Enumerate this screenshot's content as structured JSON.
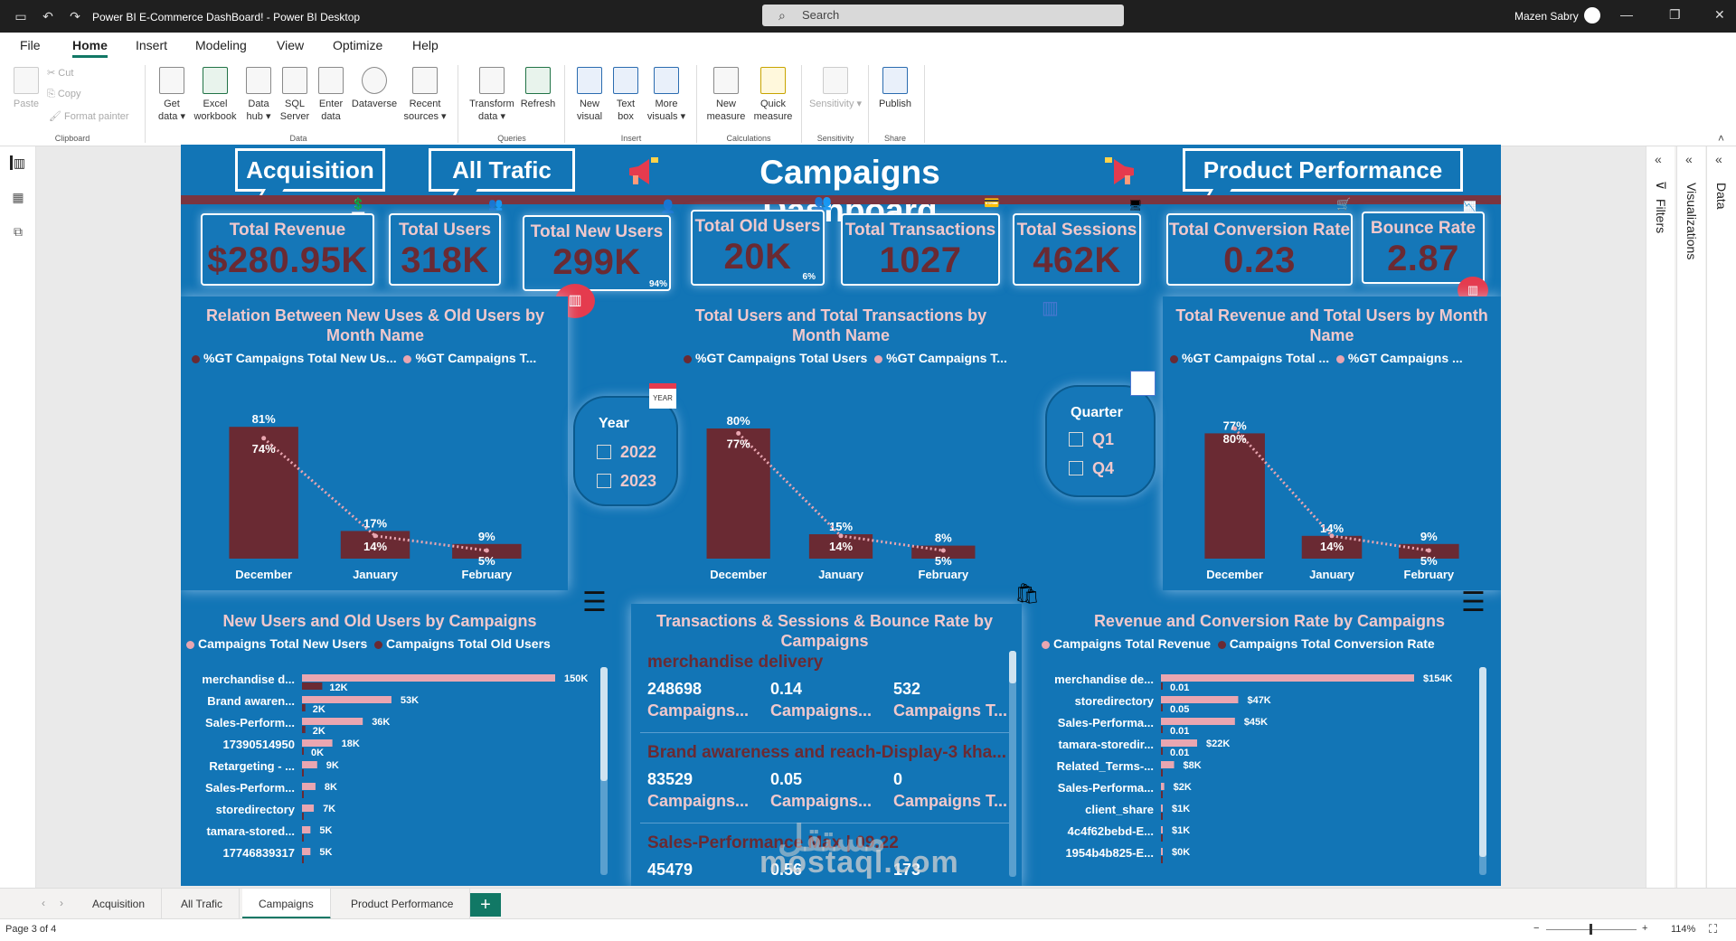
{
  "window": {
    "title": "Power BI E-Commerce DashBoard! - Power BI Desktop",
    "search_placeholder": "Search",
    "user": "Mazen Sabry"
  },
  "menu": [
    "File",
    "Home",
    "Insert",
    "Modeling",
    "View",
    "Optimize",
    "Help"
  ],
  "ribbon": {
    "clipboard": {
      "paste": "Paste",
      "cut": "Cut",
      "copy": "Copy",
      "format_painter": "Format painter",
      "group": "Clipboard"
    },
    "data": {
      "get_data": "Get data ▾",
      "excel": "Excel workbook",
      "hub": "Data hub ▾",
      "sql": "SQL Server",
      "enter": "Enter data",
      "dataverse": "Dataverse",
      "recent": "Recent sources ▾",
      "group": "Data"
    },
    "queries": {
      "transform": "Transform data ▾",
      "refresh": "Refresh",
      "group": "Queries"
    },
    "insert": {
      "new_visual": "New visual",
      "text_box": "Text box",
      "more_visuals": "More visuals ▾",
      "group": "Insert"
    },
    "calculations": {
      "new_measure": "New measure",
      "quick_measure": "Quick measure",
      "group": "Calculations"
    },
    "sensitivity": {
      "label": "Sensitivity ▾",
      "group": "Sensitivity"
    },
    "share": {
      "publish": "Publish",
      "group": "Share"
    }
  },
  "panes": {
    "filters": "Filters",
    "visualizations": "Visualizations",
    "data": "Data"
  },
  "dashboard": {
    "nav": {
      "acquisition": "Acquisition",
      "all_trafic": "All Trafic",
      "product_performance": "Product Performance"
    },
    "title": "Campaigns Dashboard",
    "kpis": [
      {
        "label": "Total Revenue",
        "value": "$280.95K"
      },
      {
        "label": "Total Users",
        "value": "318K"
      },
      {
        "label": "Total New Users",
        "value": "299K",
        "note": "94%"
      },
      {
        "label": "Total Old Users",
        "value": "20K",
        "note": "6%"
      },
      {
        "label": "Total Transactions",
        "value": "1027"
      },
      {
        "label": "Total Sessions",
        "value": "462K"
      },
      {
        "label": "Total Conversion Rate",
        "value": "0.23"
      },
      {
        "label": "Bounce Rate",
        "value": "2.87"
      }
    ],
    "slicers": {
      "year": {
        "title": "Year",
        "options": [
          "2022",
          "2023"
        ]
      },
      "quarter": {
        "title": "Quarter",
        "options": [
          "Q1",
          "Q4"
        ]
      }
    },
    "year_icon_text": "YEAR",
    "combo_legends": [
      [
        "%GT Campaigns Total New Us...",
        "%GT Campaigns T..."
      ],
      [
        "%GT Campaigns Total Users",
        "%GT Campaigns T..."
      ],
      [
        "%GT Campaigns Total ...",
        "%GT Campaigns ..."
      ]
    ],
    "bar_legends": {
      "users": [
        "Campaigns Total New Users",
        "Campaigns Total Old Users"
      ],
      "revenue": [
        "Campaigns Total Revenue",
        "Campaigns Total Conversion Rate"
      ]
    },
    "table_card": {
      "title": "Transactions & Sessions & Bounce Rate by Campaigns",
      "items": [
        {
          "name": "merchandise delivery",
          "values": [
            "248698",
            "0.14",
            "532"
          ],
          "labels": [
            "Campaigns...",
            "Campaigns...",
            "Campaigns T..."
          ]
        },
        {
          "name": "Brand awareness and reach-Display-3 kha...",
          "values": [
            "83529",
            "0.05",
            "0"
          ],
          "labels": [
            "Campaigns...",
            "Campaigns...",
            "Campaigns T..."
          ]
        },
        {
          "name": "Sales-Performance Max | 09.22",
          "values": [
            "45479",
            "0.56",
            "173"
          ],
          "labels": [
            "",
            "",
            ""
          ]
        }
      ]
    }
  },
  "watermark": {
    "arabic": "مستقل",
    "latin": "mostaql.com"
  },
  "pages": [
    "Acquisition",
    "All Trafic",
    "Campaigns",
    "Product Performance"
  ],
  "add_page": "+",
  "status": {
    "page": "Page 3 of 4",
    "zoom": "114%"
  },
  "colors": {
    "bg": "#1275b6",
    "bar": "#6a2a33",
    "line": "#e9a6b1",
    "label": "#f0c8cc",
    "accent": "#117865"
  },
  "chart_data": [
    {
      "type": "bar",
      "title": "Relation Between New Uses & Old Users by Month Name",
      "categories": [
        "December",
        "January",
        "February"
      ],
      "series": [
        {
          "name": "%GT Campaigns Total New Us...",
          "values": [
            81,
            17,
            9
          ],
          "unit": "%"
        },
        {
          "name": "%GT Campaigns T...",
          "values": [
            74,
            14,
            5
          ],
          "unit": "%",
          "render": "line"
        }
      ]
    },
    {
      "type": "bar",
      "title": "Total Users and Total Transactions by Month Name",
      "categories": [
        "December",
        "January",
        "February"
      ],
      "series": [
        {
          "name": "%GT Campaigns Total Users",
          "values": [
            80,
            15,
            8
          ],
          "unit": "%"
        },
        {
          "name": "%GT Campaigns T...",
          "values": [
            77,
            14,
            5
          ],
          "unit": "%",
          "render": "line"
        }
      ]
    },
    {
      "type": "bar",
      "title": "Total Revenue and Total Users by Month Name",
      "categories": [
        "December",
        "January",
        "February"
      ],
      "series": [
        {
          "name": "%GT Campaigns Total ...",
          "values": [
            77,
            14,
            9
          ],
          "unit": "%"
        },
        {
          "name": "%GT Campaigns ...",
          "values": [
            80,
            14,
            5
          ],
          "unit": "%",
          "render": "line"
        }
      ]
    },
    {
      "type": "bar",
      "orientation": "horizontal",
      "title": "New Users and Old Users by Campaigns",
      "categories": [
        "merchandise d...",
        "Brand awaren...",
        "Sales-Perform...",
        "17390514950",
        "Retargeting - ...",
        "Sales-Perform...",
        "storedirectory",
        "tamara-stored...",
        "17746839317"
      ],
      "series": [
        {
          "name": "Campaigns Total New Users",
          "values": [
            150,
            53,
            36,
            18,
            9,
            8,
            7,
            5,
            5
          ],
          "labels": [
            "150K",
            "53K",
            "36K",
            "18K",
            "9K",
            "8K",
            "7K",
            "5K",
            "5K"
          ]
        },
        {
          "name": "Campaigns Total Old Users",
          "values": [
            12,
            2,
            2,
            0,
            0,
            0,
            0,
            0,
            0
          ],
          "labels": [
            "12K",
            "2K",
            "2K",
            "0K",
            "",
            "",
            "",
            "",
            ""
          ]
        }
      ]
    },
    {
      "type": "bar",
      "orientation": "horizontal",
      "title": "Revenue and Conversion Rate by Campaigns",
      "categories": [
        "merchandise de...",
        "storedirectory",
        "Sales-Performa...",
        "tamara-storedir...",
        "Related_Terms-...",
        "Sales-Performa...",
        "client_share",
        "4c4f62bebd-E...",
        "1954b4b825-E..."
      ],
      "series": [
        {
          "name": "Campaigns Total Revenue",
          "values": [
            154,
            47,
            45,
            22,
            8,
            2,
            1,
            1,
            0
          ],
          "labels": [
            "$154K",
            "$47K",
            "$45K",
            "$22K",
            "$8K",
            "$2K",
            "$1K",
            "$1K",
            "$0K"
          ]
        },
        {
          "name": "Campaigns Total Conversion Rate",
          "values": [
            0.01,
            0.05,
            0.01,
            0.01,
            0,
            0,
            0,
            0,
            0
          ],
          "labels": [
            "0.01",
            "0.05",
            "0.01",
            "0.01",
            "",
            "",
            "",
            "",
            ""
          ]
        }
      ]
    }
  ]
}
